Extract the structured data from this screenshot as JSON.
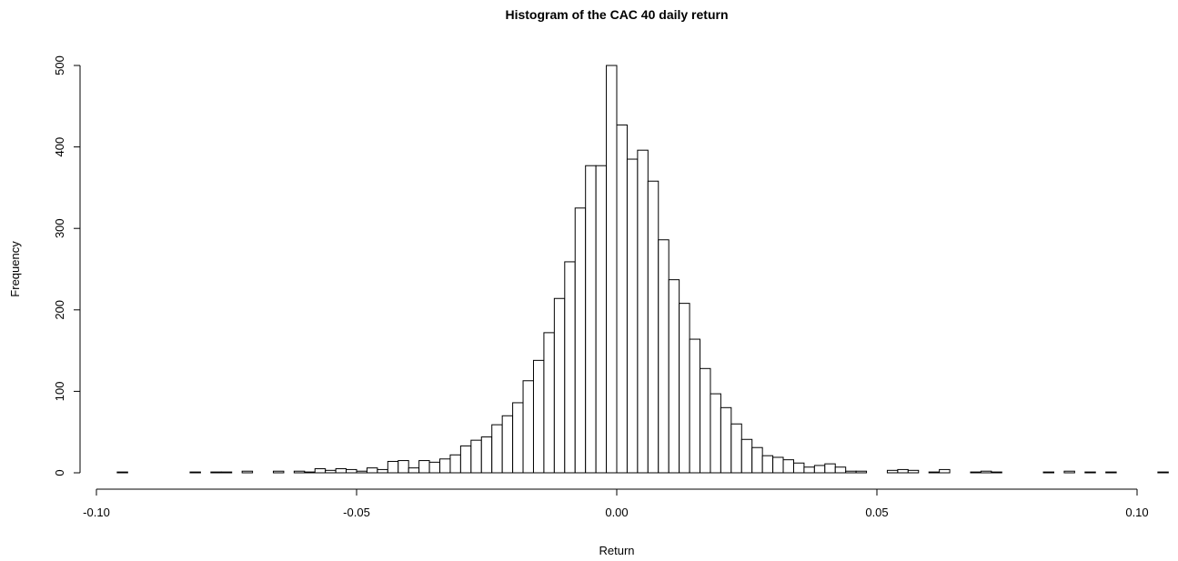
{
  "chart_data": {
    "type": "histogram",
    "title": "Histogram of the CAC 40 daily return",
    "x_label": "Return",
    "y_label": "Frequency",
    "bins": [
      -0.096,
      -0.094,
      -0.092,
      -0.09,
      -0.088,
      -0.086,
      -0.084,
      -0.082,
      -0.08,
      -0.078,
      -0.076,
      -0.074,
      -0.072,
      -0.07,
      -0.068,
      -0.066,
      -0.064,
      -0.062,
      -0.06,
      -0.058,
      -0.056,
      -0.054,
      -0.052,
      -0.05,
      -0.048,
      -0.046,
      -0.044,
      -0.042,
      -0.04,
      -0.038,
      -0.036,
      -0.034,
      -0.032,
      -0.03,
      -0.028,
      -0.026,
      -0.024,
      -0.022,
      -0.02,
      -0.018,
      -0.016,
      -0.014,
      -0.012,
      -0.01,
      -0.008,
      -0.006,
      -0.004,
      -0.002,
      0,
      0.002,
      0.004,
      0.006,
      0.008,
      0.01,
      0.012,
      0.014,
      0.016,
      0.018,
      0.02,
      0.022,
      0.024,
      0.026,
      0.028,
      0.03,
      0.032,
      0.034,
      0.036,
      0.038,
      0.04,
      0.042,
      0.044,
      0.046,
      0.048,
      0.05,
      0.052,
      0.054,
      0.056,
      0.058,
      0.06,
      0.062,
      0.064,
      0.066,
      0.068,
      0.07,
      0.072,
      0.074,
      0.076,
      0.078,
      0.08,
      0.082,
      0.084,
      0.086,
      0.088,
      0.09,
      0.092,
      0.094,
      0.096,
      0.098,
      0.1,
      0.102,
      0.104,
      0.106
    ],
    "counts": [
      1,
      0,
      0,
      0,
      0,
      0,
      0,
      1,
      0,
      1,
      1,
      0,
      2,
      0,
      0,
      2,
      0,
      2,
      1,
      5,
      3,
      5,
      4,
      2,
      6,
      4,
      14,
      15,
      6,
      15,
      13,
      17,
      22,
      33,
      40,
      44,
      59,
      70,
      86,
      113,
      138,
      172,
      214,
      259,
      325,
      377,
      377,
      500,
      427,
      385,
      396,
      358,
      286,
      237,
      208,
      164,
      128,
      97,
      80,
      60,
      41,
      31,
      21,
      19,
      16,
      12,
      7,
      9,
      11,
      7,
      2,
      2,
      0,
      0,
      3,
      4,
      3,
      0,
      1,
      4,
      0,
      0,
      1,
      2,
      1,
      0,
      0,
      0,
      0,
      1,
      0,
      2,
      0,
      1,
      0,
      1,
      0,
      0,
      0,
      0,
      1
    ],
    "color": "#ffffff",
    "xlim": [
      -0.1,
      0.1
    ],
    "xticks": [
      {
        "value": -0.1,
        "label": "-0.10"
      },
      {
        "value": -0.05,
        "label": "-0.05"
      },
      {
        "value": 0,
        "label": "0.00"
      },
      {
        "value": 0.05,
        "label": "0.05"
      },
      {
        "value": 0.1,
        "label": "0.10"
      }
    ],
    "ylim": [
      0,
      500
    ],
    "yticks": [
      0,
      100,
      200,
      300,
      400,
      500
    ]
  }
}
